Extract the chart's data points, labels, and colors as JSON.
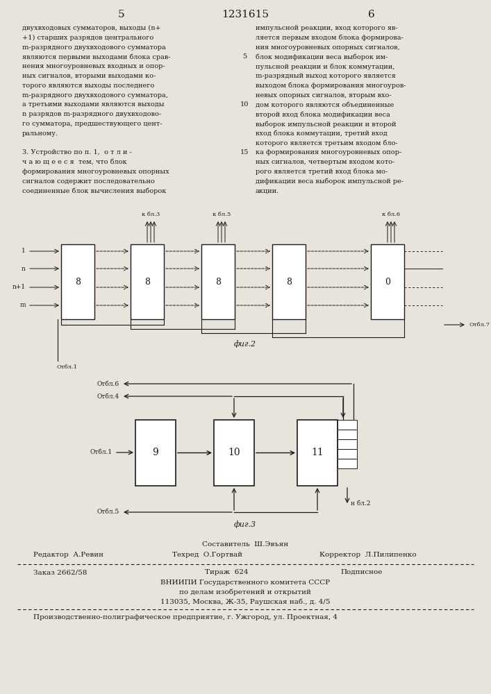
{
  "page_number_left": "5",
  "patent_number": "1231615",
  "page_number_right": "6",
  "col_left_text": [
    "двухвходовых сумматоров, выходы (n+",
    "+1) старших разрядов центрального",
    "m-разрядного двухвходового сумматора",
    "являются первыми выходами блока срав-",
    "нения многоуровневых входных и опор-",
    "ных сигналов, вторыми выходами ко-",
    "торого являются выходы последнего",
    "m-разрядного двухвходового сумматора,",
    "а третьими выходами являются выходы",
    "n разрядов m-разрядного двухвходово-",
    "го сумматора, предшествующего цент-",
    "ральному.",
    "",
    "3. Устройство по п. 1,  о т л и -",
    "ч а ю щ е е с я  тем, что блок",
    "формирования многоуровневых опорных",
    "сигналов содержит последовательно",
    "соединенные блок вычисления выборок"
  ],
  "col_right_text": [
    "импульсной реакции, вход которого яв-",
    "ляется первым входом блока формирова-",
    "ния многоуровневых опорных сигналов,",
    "блок модификации веса выборок им-",
    "пульсной реакции и блок коммутации,",
    "m-разрядный выход которого является",
    "выходом блока формирования многоуров-",
    "невых опорных сигналов, вторым вхо-",
    "дом которого являются объединенные",
    "второй вход блока модификации веса",
    "выборок импульсной реакции и второй",
    "вход блока коммутации, третий вход",
    "которого является третьим входом бло-",
    "ка формирования многоуровневых опор-",
    "ных сигналов, четвертым входом кото-",
    "рого является третий вход блока мо-",
    "дификации веса выборок импульсной ре-",
    "акции."
  ],
  "fig2_label": "фиг.2",
  "fig3_label": "фиг.3",
  "footer_composer": "Составитель  Ш.Эвъян",
  "footer_editor": "Редактор  А.Ревин",
  "footer_tech": "Техред  О.Гортвай",
  "footer_corrector": "Корректор  Л.Пилипенко",
  "footer_order": "Заказ 2662/58",
  "footer_tirazh": "Тираж  624",
  "footer_podpisnoe": "Подписное",
  "footer_org1": "ВНИИПИ Государственного комитета СССР",
  "footer_org2": "по делам изобретений и открытий",
  "footer_org3": "113035, Москва, Ж-35, Раушская наб., д. 4/5",
  "footer_prod": "Производственно-полиграфическое предприятие, г. Ужгород, ул. Проектная, 4",
  "bg_color": "#e8e4dc",
  "text_color": "#1a1a1a"
}
